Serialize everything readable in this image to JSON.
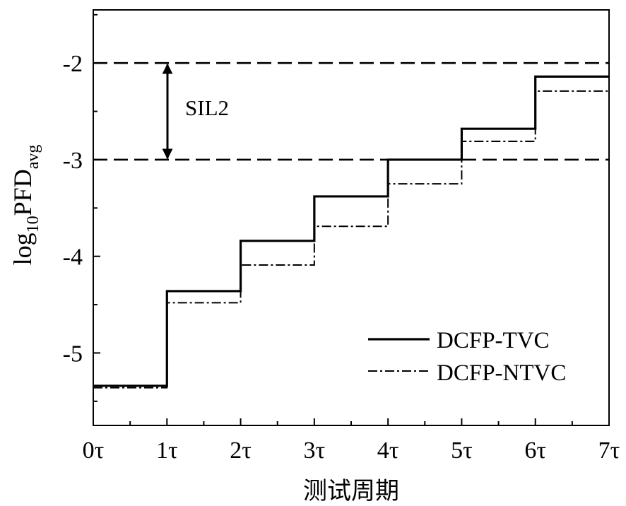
{
  "chart_data": {
    "type": "line",
    "step": true,
    "xlabel": "测试周期",
    "ylabel": {
      "base": "log",
      "sub1": "10",
      "main": "PFD",
      "sub2": "avg"
    },
    "categories": [
      "0τ",
      "1τ",
      "2τ",
      "3τ",
      "4τ",
      "5τ",
      "6τ",
      "7τ"
    ],
    "x_domain": [
      0,
      7
    ],
    "ylim": [
      -5.75,
      -1.45
    ],
    "yticks": [
      -5,
      -4,
      -3,
      -2
    ],
    "ytick_labels": [
      "-5",
      "-4",
      "-3",
      "-2"
    ],
    "series": [
      {
        "name": "DCFP-TVC",
        "style": "solid",
        "x": [
          0,
          1,
          2,
          3,
          4,
          5,
          6,
          7
        ],
        "values": [
          -5.34,
          -4.36,
          -3.84,
          -3.38,
          -3.0,
          -2.68,
          -2.14,
          -2.14
        ]
      },
      {
        "name": "DCFP-NTVC",
        "style": "dash-dot",
        "x": [
          0,
          1,
          2,
          3,
          4,
          5,
          6,
          7
        ],
        "values": [
          -5.36,
          -4.48,
          -4.09,
          -3.69,
          -3.25,
          -2.81,
          -2.29,
          -2.29
        ]
      }
    ],
    "reference_lines": [
      -2,
      -3
    ],
    "annotation": {
      "text": "SIL2",
      "x": 1,
      "from": -3,
      "to": -2
    },
    "legend_position": "bottom-right",
    "grid": false
  }
}
